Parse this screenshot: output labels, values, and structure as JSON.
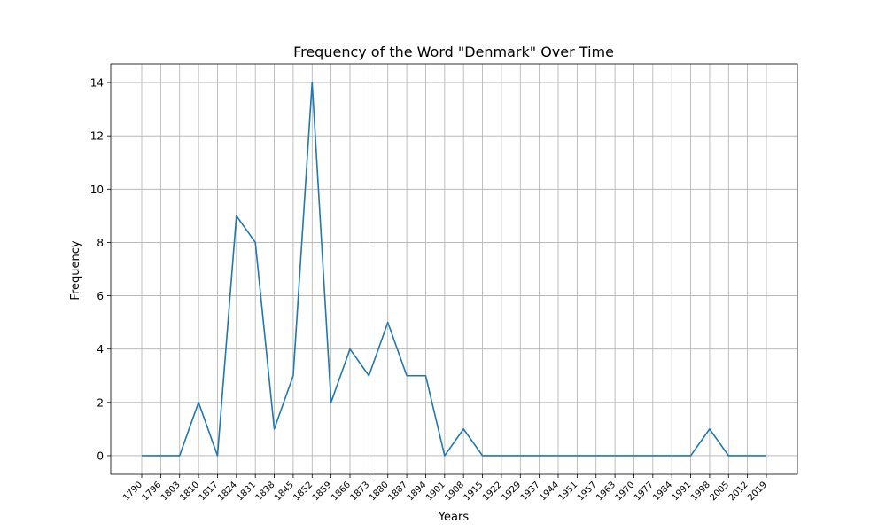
{
  "chart_data": {
    "type": "line",
    "title": "Frequency of the Word \"Denmark\" Over Time",
    "xlabel": "Years",
    "ylabel": "Frequency",
    "categories": [
      "1790",
      "1796",
      "1803",
      "1810",
      "1817",
      "1824",
      "1831",
      "1838",
      "1845",
      "1852",
      "1859",
      "1866",
      "1873",
      "1880",
      "1887",
      "1894",
      "1901",
      "1908",
      "1915",
      "1922",
      "1929",
      "1937",
      "1944",
      "1951",
      "1957",
      "1963",
      "1970",
      "1977",
      "1984",
      "1991",
      "1998",
      "2005",
      "2012",
      "2019"
    ],
    "series": [
      {
        "color": "#1f77b4",
        "values": [
          0,
          0,
          0,
          2,
          0,
          9,
          8,
          1,
          3,
          14,
          2,
          4,
          3,
          5,
          3,
          3,
          0,
          1,
          0,
          0,
          0,
          0,
          0,
          0,
          0,
          0,
          0,
          0,
          0,
          0,
          1,
          0,
          0,
          0
        ]
      }
    ],
    "yticks": [
      0,
      2,
      4,
      6,
      8,
      10,
      12,
      14
    ],
    "ylim": [
      -0.7,
      14.7
    ],
    "grid": true
  }
}
